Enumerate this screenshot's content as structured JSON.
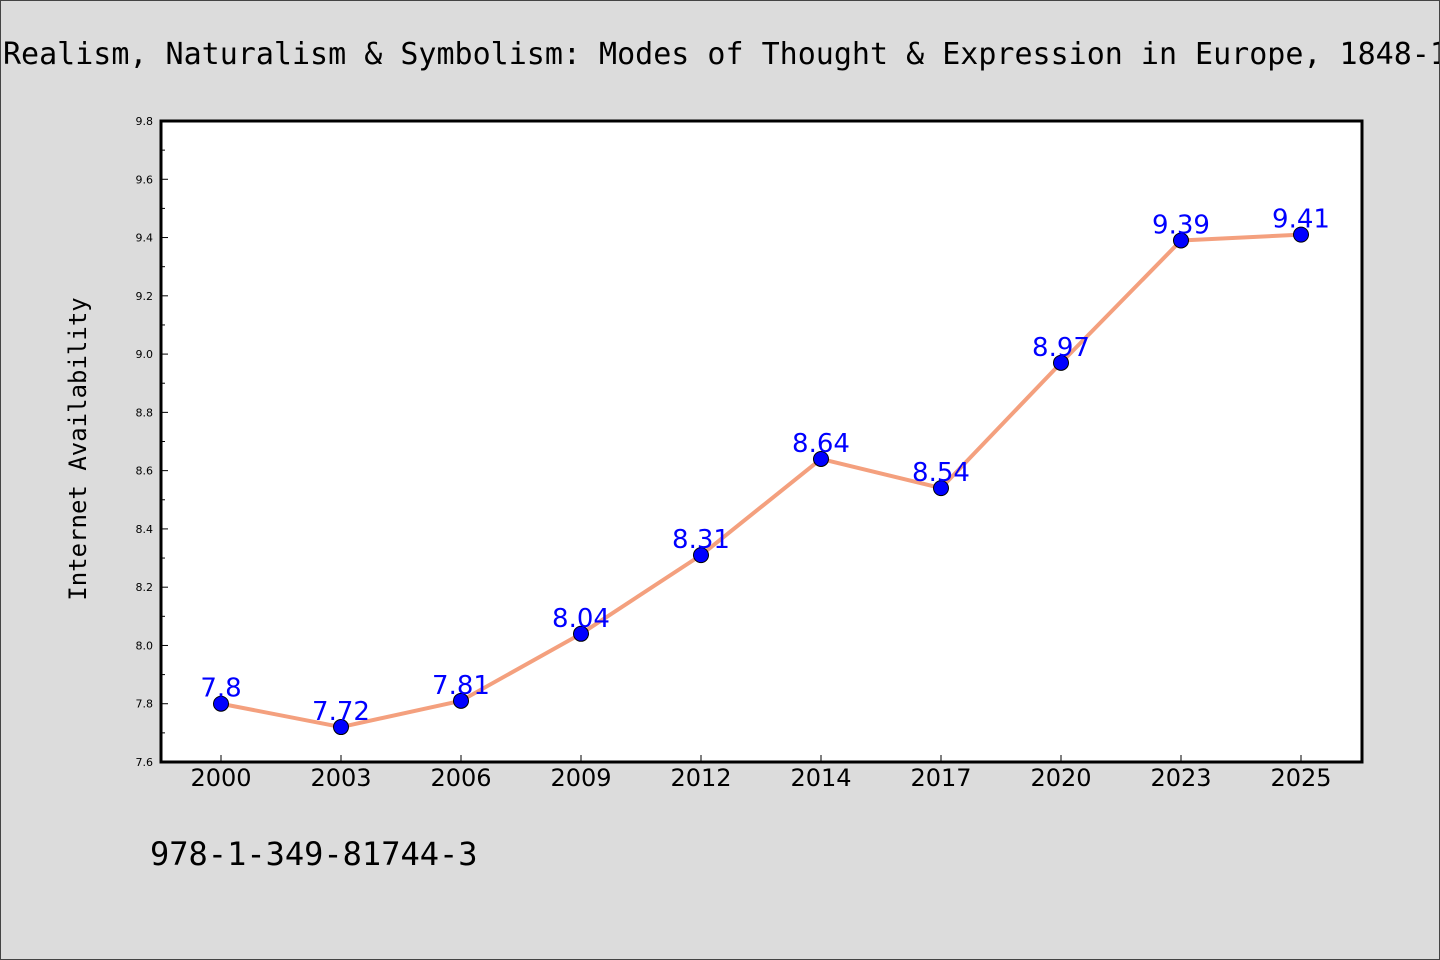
{
  "chart_data": {
    "type": "line",
    "title": "Realism, Naturalism & Symbolism: Modes of Thought & Expression in Europe, 1848-1",
    "xlabel": "",
    "ylabel": "Internet Availability",
    "categories": [
      "2000",
      "2003",
      "2006",
      "2009",
      "2012",
      "2014",
      "2017",
      "2020",
      "2023",
      "2025"
    ],
    "series": [
      {
        "values": [
          7.8,
          7.72,
          7.81,
          8.04,
          8.31,
          8.64,
          8.54,
          8.97,
          9.39,
          9.41
        ],
        "data_labels": [
          "7.8",
          "7.72",
          "7.81",
          "8.04",
          "8.31",
          "8.64",
          "8.54",
          "8.97",
          "9.39",
          "9.41"
        ],
        "line_color": "#f4a07e",
        "marker_color": "#0000ff"
      }
    ],
    "ylim": [
      7.6,
      9.8
    ],
    "yticks": [
      "7.6",
      "7.8",
      "8.0",
      "8.2",
      "8.4",
      "8.6",
      "8.8",
      "9.0",
      "9.2",
      "9.4",
      "9.6",
      "9.8"
    ],
    "grid": false,
    "legend": "none"
  },
  "footer": {
    "isbn": "978-1-349-81744-3"
  },
  "colors": {
    "background": "#dcdcdc",
    "plot_background": "#ffffff",
    "data_label": "#0000ff"
  }
}
